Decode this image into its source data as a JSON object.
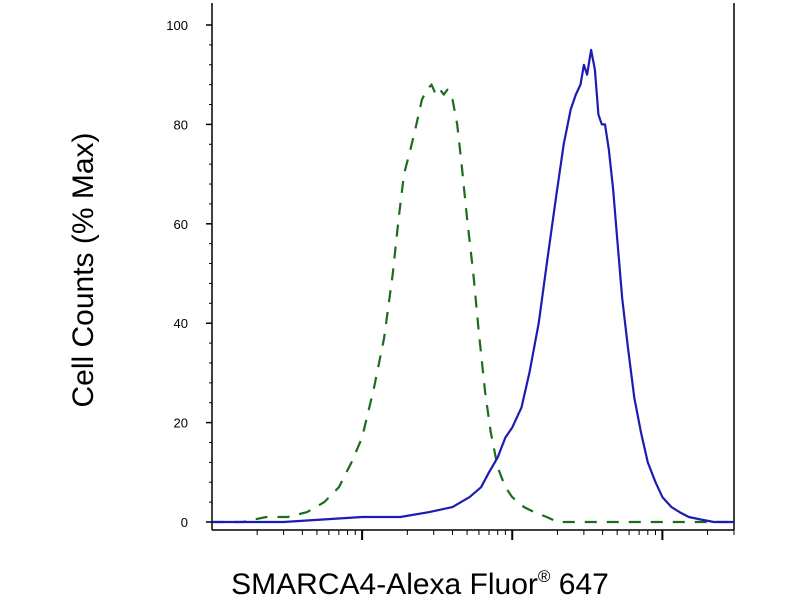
{
  "chart_data": {
    "type": "line",
    "title": "",
    "xlabel": "SMARCA4-Alexa Fluor",
    "xlabel_mark": "®",
    "xlabel_suffix": " 647",
    "ylabel": "Cell Counts (% Max)",
    "ylim": [
      0,
      100
    ],
    "yticks": [
      0,
      20,
      40,
      60,
      80,
      100
    ],
    "xscale": "log",
    "xlim": [
      1,
      3000
    ],
    "xticks_major": [
      10,
      100,
      1000
    ],
    "x_ticklabels_shown": false,
    "grid": false,
    "legend": "none",
    "series": [
      {
        "style": "dashed",
        "color": "#1d6b1d",
        "x": [
          1,
          1.6,
          2.3,
          3.2,
          4.3,
          5.6,
          7,
          8.5,
          10,
          12,
          14,
          16,
          17.5,
          19,
          21,
          23,
          25,
          27,
          29,
          31,
          33,
          35,
          37,
          40,
          43,
          46,
          50,
          55,
          60,
          66,
          72,
          80,
          90,
          100,
          120,
          140,
          170,
          200,
          240,
          290,
          350,
          420,
          500,
          600,
          800,
          1200,
          2000,
          3000
        ],
        "y": [
          0,
          0,
          1,
          1,
          2,
          4,
          7,
          12,
          17,
          27,
          37,
          50,
          61,
          70,
          75,
          80,
          85,
          87,
          88,
          86,
          87,
          86,
          87,
          85,
          80,
          72,
          61,
          50,
          38,
          26,
          18,
          11,
          7,
          5,
          3,
          2,
          1,
          0,
          0,
          0,
          0,
          0,
          0,
          0,
          0,
          0,
          0,
          0
        ]
      },
      {
        "style": "solid",
        "color": "#1c1cb4",
        "x": [
          1,
          3,
          10,
          18,
          28,
          40,
          52,
          62,
          70,
          80,
          90,
          100,
          115,
          130,
          150,
          170,
          195,
          220,
          245,
          265,
          285,
          300,
          315,
          335,
          355,
          375,
          395,
          415,
          440,
          470,
          500,
          540,
          590,
          650,
          720,
          800,
          900,
          1000,
          1150,
          1300,
          1500,
          1800,
          2200,
          2700,
          3000
        ],
        "y": [
          0,
          0,
          1,
          1,
          2,
          3,
          5,
          7,
          10,
          13,
          17,
          19,
          23,
          30,
          40,
          52,
          65,
          76,
          83,
          86,
          88,
          92,
          90,
          95,
          91,
          82,
          80,
          80,
          75,
          67,
          57,
          45,
          35,
          25,
          18,
          12,
          8,
          5,
          3,
          2,
          1,
          0.5,
          0,
          0,
          0
        ]
      }
    ]
  }
}
